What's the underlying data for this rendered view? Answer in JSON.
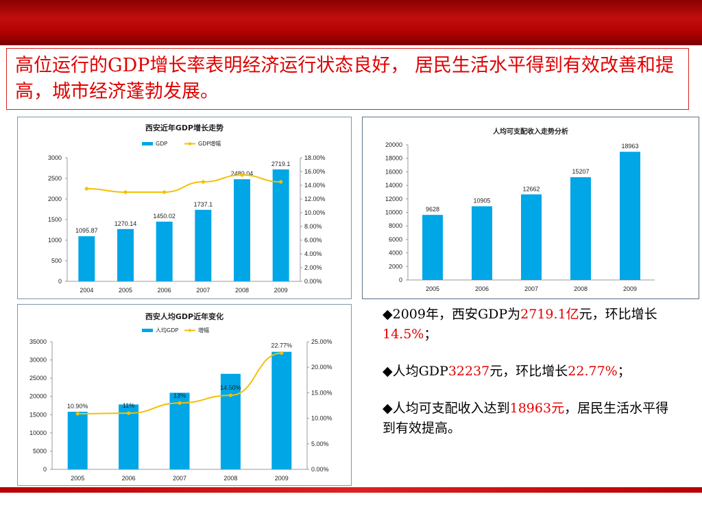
{
  "title": "高位运行的GDP增长率表明经济运行状态良好， 居民生活水平得到有效改善和提高，城市经济蓬勃发展。",
  "bullets": [
    {
      "parts": [
        {
          "t": "◆2009年，西安GDP为",
          "red": false
        },
        {
          "t": "2719.1亿",
          "red": true
        },
        {
          "t": "元，环比增长",
          "red": false
        },
        {
          "t": "14.5%",
          "red": true
        },
        {
          "t": "；",
          "red": false
        }
      ]
    },
    {
      "parts": [
        {
          "t": "◆人均GDP",
          "red": false
        },
        {
          "t": "32237",
          "red": true
        },
        {
          "t": "元，环比增长",
          "red": false
        },
        {
          "t": "22.77%",
          "red": true
        },
        {
          "t": "；",
          "red": false
        }
      ]
    },
    {
      "parts": [
        {
          "t": "◆人均可支配收入达到",
          "red": false
        },
        {
          "t": "18963元",
          "red": true
        },
        {
          "t": "，居民生活水平得到有效提高。",
          "red": false
        }
      ]
    }
  ],
  "colors": {
    "bar": "#00a6e6",
    "line": "#f5c000",
    "accent": "#e00000"
  },
  "chart_data": [
    {
      "type": "bar",
      "title": "西安近年GDP增长走势",
      "categories": [
        "2004",
        "2005",
        "2006",
        "2007",
        "2008",
        "2009"
      ],
      "series": [
        {
          "name": "GDP",
          "type": "bar",
          "axis": "left",
          "values": [
            1095.87,
            1270.14,
            1450.02,
            1737.1,
            2480.04,
            2719.1
          ],
          "labels": [
            "1095.87",
            "1270.14",
            "1450.02",
            "1737.1",
            "2480.04",
            "2719.1"
          ]
        },
        {
          "name": "GDP增幅",
          "type": "line",
          "axis": "right",
          "values": [
            13.5,
            13.0,
            13.0,
            14.5,
            15.5,
            14.5
          ]
        }
      ],
      "y_left": {
        "min": 0,
        "max": 3000,
        "step": 500,
        "ticks": [
          "0",
          "500",
          "1000",
          "1500",
          "2000",
          "2500",
          "3000"
        ]
      },
      "y_right": {
        "min": 0,
        "max": 18,
        "step": 2,
        "ticks": [
          "0.00%",
          "2.00%",
          "4.00%",
          "6.00%",
          "8.00%",
          "10.00%",
          "12.00%",
          "14.00%",
          "16.00%",
          "18.00%"
        ]
      },
      "legend": "top-center",
      "grid": false
    },
    {
      "type": "bar",
      "title": "人均可支配收入走势分析",
      "categories": [
        "2005",
        "2006",
        "2007",
        "2008",
        "2009"
      ],
      "series": [
        {
          "type": "bar",
          "axis": "left",
          "values": [
            9628,
            10905,
            12662,
            15207,
            18963
          ],
          "labels": [
            "9628",
            "10905",
            "12662",
            "15207",
            "18963"
          ]
        }
      ],
      "y_left": {
        "min": 0,
        "max": 20000,
        "step": 2000,
        "ticks": [
          "0",
          "2000",
          "4000",
          "6000",
          "8000",
          "10000",
          "12000",
          "14000",
          "16000",
          "18000",
          "20000"
        ]
      },
      "legend": "none",
      "grid": false
    },
    {
      "type": "bar",
      "title": "西安人均GDP近年变化",
      "categories": [
        "2005",
        "2006",
        "2007",
        "2008",
        "2009"
      ],
      "series": [
        {
          "name": "人均GDP",
          "type": "bar",
          "axis": "left",
          "values": [
            15800,
            17800,
            21000,
            26200,
            32237
          ]
        },
        {
          "name": "增幅",
          "type": "line",
          "axis": "right",
          "values": [
            10.9,
            11,
            13,
            14.5,
            22.77
          ],
          "labels": [
            "10.90%",
            "11%",
            "13%",
            "14.50%",
            "22.77%"
          ]
        }
      ],
      "y_left": {
        "min": 0,
        "max": 35000,
        "step": 5000,
        "ticks": [
          "0",
          "5000",
          "10000",
          "15000",
          "20000",
          "25000",
          "30000",
          "35000"
        ]
      },
      "y_right": {
        "min": 0,
        "max": 25,
        "step": 5,
        "ticks": [
          "0.00%",
          "5.00%",
          "10.00%",
          "15.00%",
          "20.00%",
          "25.00%"
        ]
      },
      "legend": "top-center",
      "grid": false
    }
  ]
}
